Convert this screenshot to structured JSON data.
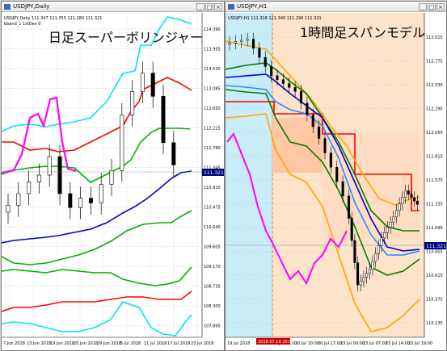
{
  "left": {
    "window_title": "USDJPY,Daily",
    "info_line": "USDJPY,Daily  111.347 111.355 111.280 111.321",
    "info_line2": "bband_1 1stDev 0",
    "heading": "日足スーパーボリンジャー",
    "current_price": "111.321",
    "y_labels": [
      "114.390",
      "113.955",
      "113.520",
      "113.085",
      "112.650",
      "112.215",
      "111.780",
      "111.345",
      "110.910",
      "110.475",
      "110.040",
      "109.605",
      "109.170",
      "108.735",
      "108.300",
      "107.865"
    ],
    "x_labels": [
      "7 Jun 2018",
      "13 Jun 2018",
      "19 Jun 2018",
      "25 Jun 2018",
      "29 Jun 2018",
      "5 Jul 2018",
      "11 Jul 2018",
      "17 Jul 2018",
      "23 Jul 2018"
    ],
    "colors": {
      "candle": "#000000",
      "bb_sigma2": "#00e5ee",
      "bb_sigma1": "#00b000",
      "middle": "#0000cc",
      "trend": "#ff0000",
      "lagging": "#ff00ff"
    }
  },
  "right": {
    "window_title": "USDJPY,H1",
    "info_line": "USDJPY,H1  111.318 111.340 111.290 111.321",
    "heading": "1時間足スパンモデル",
    "current_price": "111.321",
    "y_labels": [
      "113.015",
      "112.775",
      "112.535",
      "112.295",
      "112.055",
      "111.815",
      "111.575",
      "111.335",
      "111.095",
      "110.855",
      "110.615",
      "110.375",
      "110.135"
    ],
    "x_labels": [
      "19 Jul 2018",
      "19 Jul 20:00",
      "20 Jul 03:00",
      "20 Jul 10:00",
      "20 Jul 17:00",
      "23 Jul 00:00",
      "23 Jul 07:00",
      "23 Jul 14:00",
      "23 Jul 19:00"
    ],
    "highlight_label": "2018.07.19 20:00",
    "colors": {
      "candle": "#000000",
      "red_span": "#ff0000",
      "blue_line": "#0000cc",
      "lightblue": "#1e90ff",
      "green": "#008000",
      "orange": "#ffa500",
      "lagging": "#ff00ff",
      "zone_blue": "#c8ecf8",
      "zone_orange": "#fde3c9"
    }
  },
  "chart_data": [
    {
      "type": "line",
      "title": "日足スーパーボリンジャー",
      "ylim": [
        107.6,
        114.6
      ],
      "series": [
        {
          "name": "",
          "values": [
            {
              "x": 0,
              "y": 110.3
            },
            {
              "x": 2,
              "y": 110.45
            },
            {
              "x": 4,
              "y": 110.7
            },
            {
              "x": 6,
              "y": 110.95
            },
            {
              "x": 8,
              "y": 111.1
            },
            {
              "x": 10,
              "y": 111.5
            },
            {
              "x": 12,
              "y": 110.7
            },
            {
              "x": 14,
              "y": 110.4
            },
            {
              "x": 16,
              "y": 110.6
            },
            {
              "x": 18,
              "y": 110.5
            },
            {
              "x": 20,
              "y": 110.9
            },
            {
              "x": 22,
              "y": 111.2
            },
            {
              "x": 24,
              "y": 112.4
            },
            {
              "x": 26,
              "y": 112.9
            },
            {
              "x": 28,
              "y": 113.3
            },
            {
              "x": 30,
              "y": 112.8
            },
            {
              "x": 32,
              "y": 111.8
            },
            {
              "x": 34,
              "y": 111.32
            }
          ]
        }
      ]
    },
    {
      "type": "line",
      "title": "1時間足スパンモデル",
      "ylim": [
        110.05,
        113.15
      ],
      "series": [
        {
          "name": "",
          "values": [
            {
              "x": 0,
              "y": 112.85
            },
            {
              "x": 10,
              "y": 112.9
            },
            {
              "x": 20,
              "y": 112.55
            },
            {
              "x": 30,
              "y": 112.4
            },
            {
              "x": 40,
              "y": 111.95
            },
            {
              "x": 50,
              "y": 111.4
            },
            {
              "x": 55,
              "y": 110.55
            },
            {
              "x": 60,
              "y": 110.7
            },
            {
              "x": 65,
              "y": 111.0
            },
            {
              "x": 70,
              "y": 111.2
            },
            {
              "x": 75,
              "y": 111.45
            },
            {
              "x": 80,
              "y": 111.32
            }
          ]
        }
      ]
    }
  ]
}
